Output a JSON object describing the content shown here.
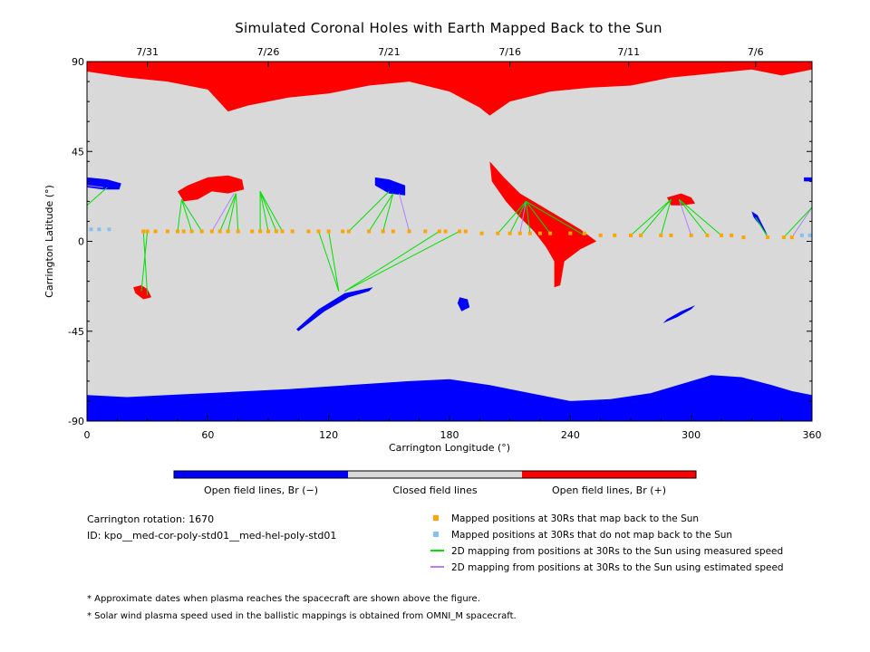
{
  "chart_data": {
    "type": "map",
    "title": "Simulated Coronal Holes with Earth Mapped Back to the Sun",
    "xlabel": "Carrington Longitude (°)",
    "ylabel": "Carrington Latitude (°)",
    "xlim": [
      0,
      360
    ],
    "ylim": [
      -90,
      90
    ],
    "x_ticks": [
      "0",
      "60",
      "120",
      "180",
      "240",
      "300",
      "360"
    ],
    "y_ticks": [
      "90",
      "45",
      "0",
      "-45",
      "-90"
    ],
    "date_ticks": [
      {
        "label": "7/31",
        "lon": 30
      },
      {
        "label": "7/26",
        "lon": 90
      },
      {
        "label": "7/21",
        "lon": 150
      },
      {
        "label": "7/16",
        "lon": 210
      },
      {
        "label": "7/11",
        "lon": 269
      },
      {
        "label": "7/6",
        "lon": 332
      }
    ],
    "colors": {
      "negative": "#0000ff",
      "closed": "#d9d9d9",
      "positive": "#ff0000",
      "mapped": "#ffa500",
      "unmapped": "#87c0f0",
      "measured_line": "#00e000",
      "estimated_line": "#b080ff"
    },
    "colorbar_labels": [
      "Open field lines, Br (−)",
      "Closed field lines",
      "Open field lines, Br (+)"
    ],
    "legend": [
      {
        "label": "Mapped positions at 30Rs that map back to the Sun",
        "kind": "square",
        "color": "#ffa500"
      },
      {
        "label": "Mapped positions at 30Rs that do not map back to the Sun",
        "kind": "square",
        "color": "#87c0f0"
      },
      {
        "label": "2D mapping from positions at 30Rs to the Sun using measured speed",
        "kind": "line",
        "color": "#00e000"
      },
      {
        "label": "2D mapping from positions at 30Rs to the Sun using estimated speed",
        "kind": "line",
        "color": "#b080ff"
      }
    ],
    "holes": [
      {
        "polarity": "positive",
        "points": [
          [
            0,
            85
          ],
          [
            20,
            82
          ],
          [
            40,
            80
          ],
          [
            60,
            76
          ],
          [
            70,
            65
          ],
          [
            80,
            68
          ],
          [
            100,
            72
          ],
          [
            120,
            74
          ],
          [
            140,
            78
          ],
          [
            160,
            80
          ],
          [
            180,
            75
          ],
          [
            195,
            67
          ],
          [
            200,
            63
          ],
          [
            210,
            70
          ],
          [
            230,
            75
          ],
          [
            250,
            77
          ],
          [
            270,
            78
          ],
          [
            290,
            82
          ],
          [
            310,
            84
          ],
          [
            330,
            86
          ],
          [
            345,
            83
          ],
          [
            360,
            86
          ],
          [
            360,
            90
          ],
          [
            0,
            90
          ]
        ]
      },
      {
        "polarity": "negative",
        "points": [
          [
            0,
            -77
          ],
          [
            20,
            -78
          ],
          [
            40,
            -77
          ],
          [
            60,
            -76
          ],
          [
            80,
            -75
          ],
          [
            100,
            -74
          ],
          [
            130,
            -72
          ],
          [
            160,
            -70
          ],
          [
            180,
            -69
          ],
          [
            200,
            -72
          ],
          [
            220,
            -76
          ],
          [
            240,
            -80
          ],
          [
            260,
            -79
          ],
          [
            280,
            -76
          ],
          [
            300,
            -70
          ],
          [
            310,
            -67
          ],
          [
            325,
            -68
          ],
          [
            340,
            -72
          ],
          [
            350,
            -75
          ],
          [
            360,
            -77
          ],
          [
            360,
            -90
          ],
          [
            0,
            -90
          ]
        ]
      },
      {
        "polarity": "positive",
        "points": [
          [
            45,
            25
          ],
          [
            50,
            28
          ],
          [
            60,
            32
          ],
          [
            70,
            33
          ],
          [
            77,
            31
          ],
          [
            78,
            26
          ],
          [
            70,
            24
          ],
          [
            62,
            25
          ],
          [
            55,
            21
          ],
          [
            48,
            20
          ]
        ]
      },
      {
        "polarity": "positive",
        "points": [
          [
            23,
            -23
          ],
          [
            27,
            -22
          ],
          [
            30,
            -24
          ],
          [
            32,
            -28
          ],
          [
            28,
            -29
          ],
          [
            24,
            -26
          ]
        ]
      },
      {
        "polarity": "negative",
        "points": [
          [
            0,
            32
          ],
          [
            10,
            31
          ],
          [
            17,
            29
          ],
          [
            16,
            26
          ],
          [
            8,
            26
          ],
          [
            0,
            27
          ]
        ]
      },
      {
        "polarity": "negative",
        "points": [
          [
            143,
            32
          ],
          [
            150,
            31
          ],
          [
            158,
            28
          ],
          [
            158,
            23
          ],
          [
            150,
            24
          ],
          [
            143,
            28
          ]
        ]
      },
      {
        "polarity": "negative",
        "points": [
          [
            105,
            -45
          ],
          [
            118,
            -35
          ],
          [
            130,
            -28
          ],
          [
            140,
            -25
          ],
          [
            142,
            -23
          ],
          [
            128,
            -26
          ],
          [
            115,
            -34
          ],
          [
            104,
            -44
          ]
        ]
      },
      {
        "polarity": "negative",
        "points": [
          [
            185,
            -28
          ],
          [
            189,
            -29
          ],
          [
            190,
            -33
          ],
          [
            186,
            -35
          ],
          [
            184,
            -31
          ]
        ]
      },
      {
        "polarity": "negative",
        "points": [
          [
            288,
            -39
          ],
          [
            295,
            -35
          ],
          [
            302,
            -32
          ],
          [
            300,
            -34
          ],
          [
            293,
            -38
          ],
          [
            286,
            -41
          ]
        ]
      },
      {
        "polarity": "negative",
        "points": [
          [
            330,
            15
          ],
          [
            333,
            13
          ],
          [
            337,
            5
          ],
          [
            338,
            3
          ],
          [
            335,
            7
          ],
          [
            331,
            12
          ]
        ]
      },
      {
        "polarity": "negative",
        "points": [
          [
            356,
            32
          ],
          [
            360,
            32
          ],
          [
            360,
            30
          ],
          [
            356,
            30
          ]
        ]
      },
      {
        "polarity": "positive",
        "points": [
          [
            200,
            40
          ],
          [
            207,
            32
          ],
          [
            215,
            24
          ],
          [
            225,
            18
          ],
          [
            235,
            12
          ],
          [
            245,
            6
          ],
          [
            253,
            0
          ],
          [
            245,
            -4
          ],
          [
            237,
            -10
          ],
          [
            235,
            -22
          ],
          [
            232,
            -23
          ],
          [
            232,
            -10
          ],
          [
            228,
            -3
          ],
          [
            222,
            5
          ],
          [
            215,
            12
          ],
          [
            208,
            20
          ],
          [
            201,
            30
          ]
        ]
      },
      {
        "polarity": "positive",
        "points": [
          [
            288,
            22
          ],
          [
            295,
            24
          ],
          [
            300,
            22
          ],
          [
            302,
            19
          ],
          [
            296,
            18
          ],
          [
            290,
            18
          ]
        ]
      }
    ],
    "mapped_points": {
      "mapped_lons": [
        28,
        30,
        34,
        40,
        45,
        48,
        52,
        57,
        62,
        66,
        70,
        75,
        82,
        86,
        90,
        94,
        97,
        102,
        110,
        115,
        120,
        127,
        130,
        140,
        147,
        152,
        160,
        168,
        175,
        178,
        185,
        188,
        196,
        204,
        210,
        215,
        220,
        225,
        230,
        240,
        247,
        255,
        262,
        270,
        275,
        285,
        290,
        300,
        308,
        315,
        320,
        326,
        338,
        346,
        350
      ],
      "mapped_lats": [
        5,
        5,
        5,
        5,
        5,
        5,
        5,
        5,
        5,
        5,
        5,
        5,
        5,
        5,
        5,
        5,
        5,
        5,
        5,
        5,
        5,
        5,
        5,
        5,
        5,
        5,
        5,
        5,
        5,
        5,
        5,
        5,
        4,
        4,
        4,
        4,
        4,
        4,
        4,
        4,
        4,
        3,
        3,
        3,
        3,
        3,
        3,
        3,
        3,
        3,
        3,
        2,
        2,
        2,
        2
      ],
      "unmapped_lons": [
        2,
        6,
        11,
        355,
        359
      ],
      "unmapped_lats": [
        6,
        6,
        6,
        3,
        3
      ]
    },
    "mapping_lines": [
      {
        "kind": "measured",
        "from": [
          28,
          5
        ],
        "to": [
          30,
          -27
        ]
      },
      {
        "kind": "measured",
        "from": [
          30,
          5
        ],
        "to": [
          27,
          -25
        ]
      },
      {
        "kind": "measured",
        "from": [
          45,
          5
        ],
        "to": [
          47,
          21
        ]
      },
      {
        "kind": "measured",
        "from": [
          52,
          5
        ],
        "to": [
          47,
          21
        ]
      },
      {
        "kind": "measured",
        "from": [
          57,
          5
        ],
        "to": [
          47,
          21
        ]
      },
      {
        "kind": "estimated",
        "from": [
          62,
          5
        ],
        "to": [
          73,
          24
        ]
      },
      {
        "kind": "measured",
        "from": [
          66,
          5
        ],
        "to": [
          74,
          24
        ]
      },
      {
        "kind": "measured",
        "from": [
          70,
          5
        ],
        "to": [
          74,
          24
        ]
      },
      {
        "kind": "measured",
        "from": [
          75,
          5
        ],
        "to": [
          74,
          24
        ]
      },
      {
        "kind": "measured",
        "from": [
          86,
          5
        ],
        "to": [
          86,
          25
        ]
      },
      {
        "kind": "measured",
        "from": [
          90,
          5
        ],
        "to": [
          86,
          25
        ]
      },
      {
        "kind": "measured",
        "from": [
          94,
          5
        ],
        "to": [
          86,
          25
        ]
      },
      {
        "kind": "measured",
        "from": [
          97,
          5
        ],
        "to": [
          86,
          25
        ]
      },
      {
        "kind": "measured",
        "from": [
          115,
          5
        ],
        "to": [
          125,
          -25
        ]
      },
      {
        "kind": "measured",
        "from": [
          120,
          5
        ],
        "to": [
          125,
          -25
        ]
      },
      {
        "kind": "measured",
        "from": [
          130,
          5
        ],
        "to": [
          150,
          25
        ]
      },
      {
        "kind": "measured",
        "from": [
          140,
          5
        ],
        "to": [
          152,
          24
        ]
      },
      {
        "kind": "measured",
        "from": [
          147,
          5
        ],
        "to": [
          152,
          24
        ]
      },
      {
        "kind": "estimated",
        "from": [
          160,
          5
        ],
        "to": [
          155,
          24
        ]
      },
      {
        "kind": "measured",
        "from": [
          175,
          5
        ],
        "to": [
          128,
          -25
        ]
      },
      {
        "kind": "measured",
        "from": [
          185,
          5
        ],
        "to": [
          128,
          -25
        ]
      },
      {
        "kind": "measured",
        "from": [
          204,
          4
        ],
        "to": [
          218,
          20
        ]
      },
      {
        "kind": "measured",
        "from": [
          210,
          4
        ],
        "to": [
          218,
          20
        ]
      },
      {
        "kind": "estimated",
        "from": [
          215,
          4
        ],
        "to": [
          218,
          20
        ]
      },
      {
        "kind": "measured",
        "from": [
          220,
          4
        ],
        "to": [
          218,
          20
        ]
      },
      {
        "kind": "measured",
        "from": [
          230,
          4
        ],
        "to": [
          218,
          20
        ]
      },
      {
        "kind": "measured",
        "from": [
          247,
          3
        ],
        "to": [
          218,
          20
        ]
      },
      {
        "kind": "measured",
        "from": [
          270,
          3
        ],
        "to": [
          290,
          21
        ]
      },
      {
        "kind": "measured",
        "from": [
          275,
          3
        ],
        "to": [
          290,
          21
        ]
      },
      {
        "kind": "measured",
        "from": [
          285,
          3
        ],
        "to": [
          290,
          21
        ]
      },
      {
        "kind": "estimated",
        "from": [
          300,
          3
        ],
        "to": [
          294,
          21
        ]
      },
      {
        "kind": "measured",
        "from": [
          308,
          3
        ],
        "to": [
          294,
          21
        ]
      },
      {
        "kind": "measured",
        "from": [
          315,
          3
        ],
        "to": [
          294,
          21
        ]
      },
      {
        "kind": "measured",
        "from": [
          338,
          2
        ],
        "to": [
          332,
          12
        ]
      },
      {
        "kind": "estimated",
        "from": [
          350,
          2
        ],
        "to": [
          360,
          17
        ]
      },
      {
        "kind": "measured",
        "from": [
          346,
          2
        ],
        "to": [
          360,
          17
        ]
      },
      {
        "kind": "estimated",
        "from": [
          0,
          28
        ],
        "to": [
          8,
          27
        ]
      },
      {
        "kind": "measured",
        "from": [
          0,
          18
        ],
        "to": [
          10,
          27
        ]
      }
    ]
  },
  "info": {
    "rotation": "Carrington rotation: 1670",
    "id": "ID: kpo__med-cor-poly-std01__med-hel-poly-std01"
  },
  "notes": [
    "* Approximate dates when plasma reaches the spacecraft are shown above the figure.",
    "* Solar wind plasma speed used in the ballistic mappings is obtained from OMNI_M spacecraft."
  ]
}
